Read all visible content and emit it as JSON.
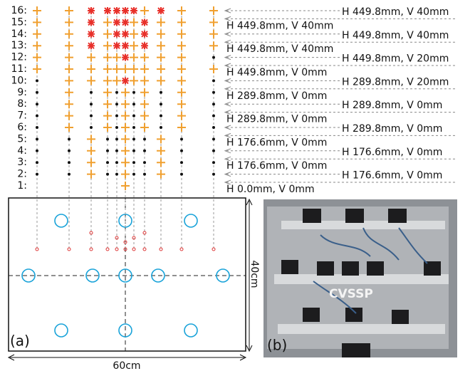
{
  "rows": [
    "1:",
    "2:",
    "3:",
    "4:",
    "5:",
    "6:",
    "7:",
    "8:",
    "9:",
    "10:",
    "11:",
    "12:",
    "13:",
    "14:",
    "15:",
    "16:"
  ],
  "annotations": [
    "H 0.0mm, V 0mm",
    "H 176.6mm, V 0mm",
    "H 176.6mm, V 0mm",
    "H 176.6mm, V 0mm",
    "H 176.6mm, V 0mm",
    "H 289.8mm, V 0mm",
    "H 289.8mm, V 0mm",
    "H 289.8mm, V 0mm",
    "H 289.8mm, V 0mm",
    "H 289.8mm, V 20mm",
    "H 449.8mm, V 0mm",
    "H 449.8mm, V 20mm",
    "H 449.8mm, V 40mm",
    "H 449.8mm, V 40mm",
    "H 449.8mm, V 40mm",
    "H 449.8mm, V 40mm"
  ],
  "panel_a": {
    "label": "(a)",
    "height": "40cm",
    "width": "60cm"
  },
  "panel_b": {
    "label": "(b)",
    "logo": "CVSSP"
  }
}
